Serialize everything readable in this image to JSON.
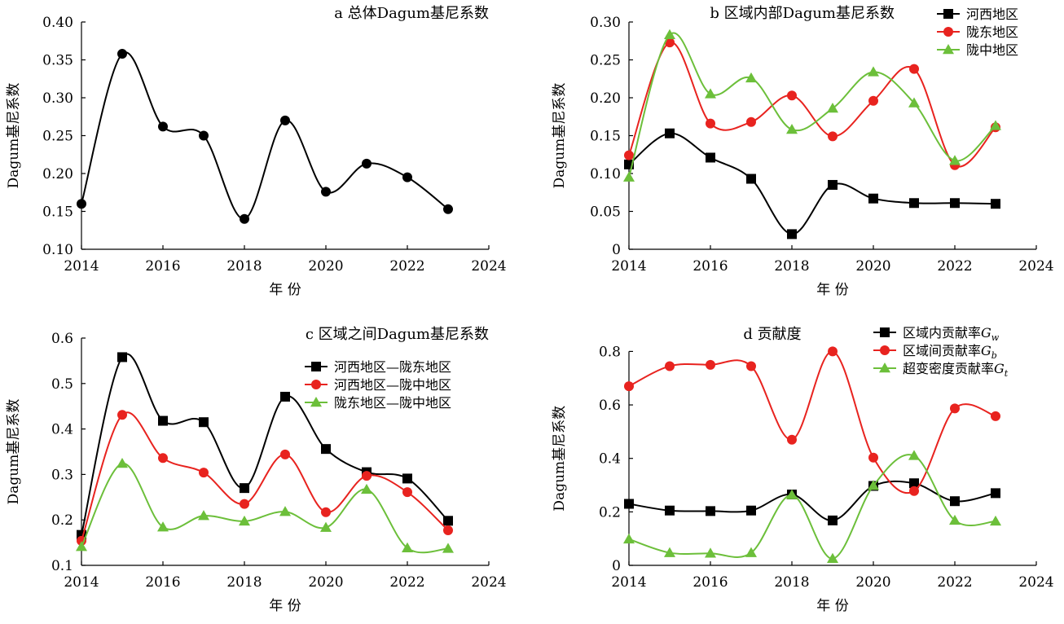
{
  "chart_data": [
    {
      "panel": "a",
      "type": "line",
      "title": "a 总体Dagum基尼系数",
      "xlabel": "年 份",
      "ylabel": "Dagum基尼系数",
      "xlim": [
        2014,
        2024
      ],
      "ylim": [
        0.1,
        0.4
      ],
      "xticks": [
        2014,
        2016,
        2018,
        2020,
        2022,
        2024
      ],
      "yticks": [
        0.1,
        0.15,
        0.2,
        0.25,
        0.3,
        0.35,
        0.4
      ],
      "ytick_labels": [
        "0.10",
        "0.15",
        "0.20",
        "0.25",
        "0.30",
        "0.35",
        "0.40"
      ],
      "grid": false,
      "legend": "none",
      "x": [
        2014,
        2015,
        2016,
        2017,
        2018,
        2019,
        2020,
        2021,
        2022,
        2023
      ],
      "series": [
        {
          "name": "",
          "color": "#000000",
          "marker": "circle",
          "values": [
            0.16,
            0.358,
            0.262,
            0.25,
            0.14,
            0.27,
            0.176,
            0.213,
            0.195,
            0.153
          ]
        }
      ]
    },
    {
      "panel": "b",
      "type": "line",
      "title": "b 区域内部Dagum基尼系数",
      "xlabel": "年 份",
      "ylabel": "Dagum基尼系数",
      "xlim": [
        2014,
        2024
      ],
      "ylim": [
        0,
        0.3
      ],
      "xticks": [
        2014,
        2016,
        2018,
        2020,
        2022,
        2024
      ],
      "yticks": [
        0,
        0.05,
        0.1,
        0.15,
        0.2,
        0.25,
        0.3
      ],
      "ytick_labels": [
        "0",
        "0.05",
        "0.10",
        "0.15",
        "0.20",
        "0.25",
        "0.30"
      ],
      "grid": false,
      "legend": "top-right",
      "x": [
        2014,
        2015,
        2016,
        2017,
        2018,
        2019,
        2020,
        2021,
        2022,
        2023
      ],
      "series": [
        {
          "name": "河西地区",
          "color": "#000000",
          "marker": "square",
          "values": [
            0.112,
            0.153,
            0.121,
            0.093,
            0.02,
            0.085,
            0.067,
            0.061,
            0.061,
            0.06
          ]
        },
        {
          "name": "陇东地区",
          "color": "#e8231f",
          "marker": "circle",
          "values": [
            0.124,
            0.273,
            0.166,
            0.168,
            0.203,
            0.149,
            0.196,
            0.238,
            0.111,
            0.161
          ]
        },
        {
          "name": "陇中地区",
          "color": "#6cbf3a",
          "marker": "triangle",
          "values": [
            0.095,
            0.283,
            0.205,
            0.226,
            0.158,
            0.186,
            0.234,
            0.193,
            0.117,
            0.163
          ]
        }
      ]
    },
    {
      "panel": "c",
      "type": "line",
      "title": "c 区域之间Dagum基尼系数",
      "xlabel": "年 份",
      "ylabel": "Dagum基尼系数",
      "xlim": [
        2014,
        2024
      ],
      "ylim": [
        0.1,
        0.6
      ],
      "xticks": [
        2014,
        2016,
        2018,
        2020,
        2022,
        2024
      ],
      "yticks": [
        0.1,
        0.2,
        0.3,
        0.4,
        0.5,
        0.6
      ],
      "ytick_labels": [
        "0.1",
        "0.2",
        "0.3",
        "0.4",
        "0.5",
        "0.6"
      ],
      "grid": false,
      "legend": "top-right",
      "x": [
        2014,
        2015,
        2016,
        2017,
        2018,
        2019,
        2020,
        2021,
        2022,
        2023
      ],
      "series": [
        {
          "name": "河西地区—陇东地区",
          "color": "#000000",
          "marker": "square",
          "values": [
            0.167,
            0.558,
            0.418,
            0.415,
            0.27,
            0.471,
            0.356,
            0.305,
            0.291,
            0.198
          ]
        },
        {
          "name": "河西地区—陇中地区",
          "color": "#e8231f",
          "marker": "circle",
          "values": [
            0.154,
            0.431,
            0.336,
            0.304,
            0.235,
            0.344,
            0.217,
            0.297,
            0.261,
            0.177
          ]
        },
        {
          "name": "陇东地区—陇中地区",
          "color": "#6cbf3a",
          "marker": "triangle",
          "values": [
            0.141,
            0.324,
            0.184,
            0.209,
            0.197,
            0.218,
            0.183,
            0.267,
            0.138,
            0.137
          ]
        }
      ]
    },
    {
      "panel": "d",
      "type": "line",
      "title": "d 贡献度",
      "xlabel": "年 份",
      "ylabel": "Dagum基尼系数",
      "xlim": [
        2014,
        2024
      ],
      "ylim": [
        0,
        0.85
      ],
      "xticks": [
        2014,
        2016,
        2018,
        2020,
        2022,
        2024
      ],
      "yticks": [
        0,
        0.2,
        0.4,
        0.6,
        0.8
      ],
      "ytick_labels": [
        "0",
        "0.2",
        "0.4",
        "0.6",
        "0.8"
      ],
      "grid": false,
      "legend": "top-right",
      "x": [
        2014,
        2015,
        2016,
        2017,
        2018,
        2019,
        2020,
        2021,
        2022,
        2023
      ],
      "series": [
        {
          "name": "区域内贡献率",
          "sym": "G",
          "sub": "w",
          "color": "#000000",
          "marker": "square",
          "values": [
            0.23,
            0.205,
            0.203,
            0.205,
            0.265,
            0.168,
            0.297,
            0.307,
            0.24,
            0.27
          ]
        },
        {
          "name": "区域间贡献率",
          "sym": "G",
          "sub": "b",
          "color": "#e8231f",
          "marker": "circle",
          "values": [
            0.67,
            0.745,
            0.75,
            0.745,
            0.47,
            0.8,
            0.403,
            0.278,
            0.587,
            0.558
          ]
        },
        {
          "name": "超变密度贡献率",
          "sym": "G",
          "sub": "t",
          "color": "#6cbf3a",
          "marker": "triangle",
          "values": [
            0.098,
            0.047,
            0.045,
            0.047,
            0.263,
            0.025,
            0.298,
            0.41,
            0.168,
            0.165
          ]
        }
      ]
    }
  ]
}
